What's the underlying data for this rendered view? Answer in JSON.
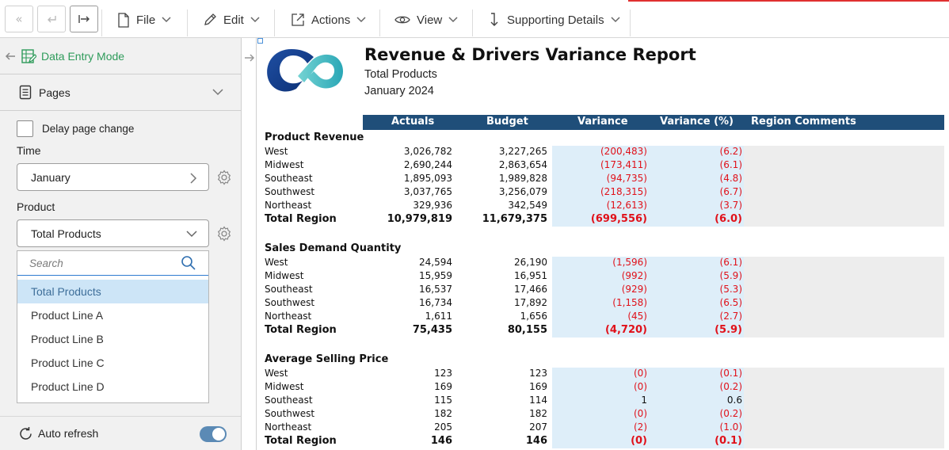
{
  "toolbar": {
    "menus": [
      {
        "label": "File",
        "icon": "file-icon"
      },
      {
        "label": "Edit",
        "icon": "pencil-icon"
      },
      {
        "label": "Actions",
        "icon": "external-link-icon"
      },
      {
        "label": "View",
        "icon": "eye-icon"
      },
      {
        "label": "Supporting Details",
        "icon": "drill-down-icon"
      }
    ]
  },
  "sidebar": {
    "mode_label": "Data Entry Mode",
    "pages_label": "Pages",
    "delay_label": "Delay page change",
    "time_label": "Time",
    "time_value": "January",
    "product_label": "Product",
    "product_value": "Total Products",
    "search_placeholder": "Search",
    "options": [
      "Total Products",
      "Product Line A",
      "Product Line B",
      "Product Line C",
      "Product Line D"
    ],
    "selected_option": "Total Products",
    "auto_refresh_label": "Auto refresh",
    "auto_refresh_on": true
  },
  "colors": {
    "accent_green": "#2e9b5a",
    "header_navy": "#1f4e79",
    "variance_shade": "#deeef9",
    "negative_red": "#e0111a"
  },
  "report": {
    "title": "Revenue & Drivers Variance Report",
    "subtitle": "Total Products",
    "period": "January 2024",
    "columns": [
      "Actuals",
      "Budget",
      "Variance",
      "Variance (%)",
      "Region Comments"
    ],
    "sections": [
      {
        "title": "Product Revenue",
        "rows": [
          {
            "label": "West",
            "actuals": "3,026,782",
            "budget": "3,227,265",
            "variance": "(200,483)",
            "variance_pct": "(6.2)"
          },
          {
            "label": "Midwest",
            "actuals": "2,690,244",
            "budget": "2,863,654",
            "variance": "(173,411)",
            "variance_pct": "(6.1)"
          },
          {
            "label": "Southeast",
            "actuals": "1,895,093",
            "budget": "1,989,828",
            "variance": "(94,735)",
            "variance_pct": "(4.8)"
          },
          {
            "label": "Southwest",
            "actuals": "3,037,765",
            "budget": "3,256,079",
            "variance": "(218,315)",
            "variance_pct": "(6.7)"
          },
          {
            "label": "Northeast",
            "actuals": "329,936",
            "budget": "342,549",
            "variance": "(12,613)",
            "variance_pct": "(3.7)"
          },
          {
            "label": "Total Region",
            "actuals": "10,979,819",
            "budget": "11,679,375",
            "variance": "(699,556)",
            "variance_pct": "(6.0)",
            "total": true
          }
        ]
      },
      {
        "title": "Sales Demand Quantity",
        "rows": [
          {
            "label": "West",
            "actuals": "24,594",
            "budget": "26,190",
            "variance": "(1,596)",
            "variance_pct": "(6.1)"
          },
          {
            "label": "Midwest",
            "actuals": "15,959",
            "budget": "16,951",
            "variance": "(992)",
            "variance_pct": "(5.9)"
          },
          {
            "label": "Southeast",
            "actuals": "16,537",
            "budget": "17,466",
            "variance": "(929)",
            "variance_pct": "(5.3)"
          },
          {
            "label": "Southwest",
            "actuals": "16,734",
            "budget": "17,892",
            "variance": "(1,158)",
            "variance_pct": "(6.5)"
          },
          {
            "label": "Northeast",
            "actuals": "1,611",
            "budget": "1,656",
            "variance": "(45)",
            "variance_pct": "(2.7)"
          },
          {
            "label": "Total Region",
            "actuals": "75,435",
            "budget": "80,155",
            "variance": "(4,720)",
            "variance_pct": "(5.9)",
            "total": true
          }
        ]
      },
      {
        "title": "Average Selling Price",
        "rows": [
          {
            "label": "West",
            "actuals": "123",
            "budget": "123",
            "variance": "(0)",
            "variance_pct": "(0.1)"
          },
          {
            "label": "Midwest",
            "actuals": "169",
            "budget": "169",
            "variance": "(0)",
            "variance_pct": "(0.2)"
          },
          {
            "label": "Southeast",
            "actuals": "115",
            "budget": "114",
            "variance": "1",
            "variance_pct": "0.6"
          },
          {
            "label": "Southwest",
            "actuals": "182",
            "budget": "182",
            "variance": "(0)",
            "variance_pct": "(0.2)"
          },
          {
            "label": "Northeast",
            "actuals": "205",
            "budget": "207",
            "variance": "(2)",
            "variance_pct": "(1.0)"
          },
          {
            "label": "Total Region",
            "actuals": "146",
            "budget": "146",
            "variance": "(0)",
            "variance_pct": "(0.1)",
            "total": true
          }
        ]
      }
    ]
  }
}
